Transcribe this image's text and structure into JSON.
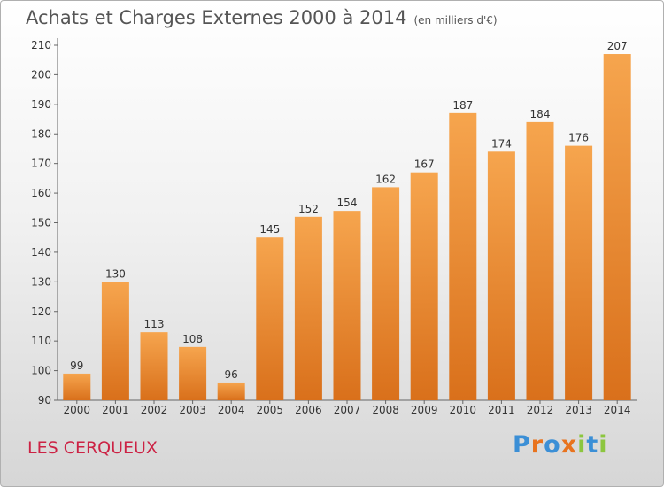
{
  "header": {
    "title": "Achats et Charges Externes 2000 à 2014",
    "unit": "(en milliers d'€)"
  },
  "footer": {
    "commune": "LES CERQUEUX",
    "logo_text": "Proxiti"
  },
  "colors": {
    "bar_top": "#f6a54e",
    "bar_bottom": "#d9701b",
    "commune": "#cc2244",
    "logo": [
      "#3b8fd6",
      "#e8731e",
      "#3b8fd6",
      "#e8731e",
      "#8cc63f",
      "#3b8fd6",
      "#8cc63f"
    ]
  },
  "chart_data": {
    "type": "bar",
    "title": "Achats et Charges Externes 2000 à 2014",
    "subtitle": "(en milliers d'€)",
    "categories": [
      "2000",
      "2001",
      "2002",
      "2003",
      "2004",
      "2005",
      "2006",
      "2007",
      "2008",
      "2009",
      "2010",
      "2011",
      "2012",
      "2013",
      "2014"
    ],
    "values": [
      99,
      130,
      113,
      108,
      96,
      145,
      152,
      154,
      162,
      167,
      187,
      174,
      184,
      176,
      207
    ],
    "ylim": [
      90,
      210
    ],
    "yticks": [
      90,
      100,
      110,
      120,
      130,
      140,
      150,
      160,
      170,
      180,
      190,
      200,
      210
    ],
    "grid": false,
    "legend": "none"
  }
}
